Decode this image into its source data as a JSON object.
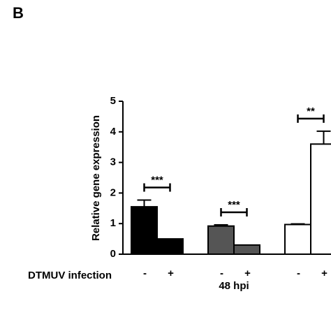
{
  "chart_data": {
    "type": "bar",
    "panel_label": "B",
    "ylabel": "Relative gene expression",
    "xlabel": "DTMUV infection",
    "group_label": "48 hpi",
    "ylim": [
      0,
      5
    ],
    "yticks": [
      0,
      1,
      2,
      3,
      4,
      5
    ],
    "groups": [
      {
        "categories": [
          "-",
          "+"
        ],
        "color": "#000000",
        "values": [
          1.55,
          0.5
        ],
        "errors": [
          0.22,
          null
        ],
        "significance": "***"
      },
      {
        "categories": [
          "-",
          "+"
        ],
        "color": "#555555",
        "values": [
          0.92,
          0.3
        ],
        "errors": [
          0.04,
          null
        ],
        "significance": "***"
      },
      {
        "categories": [
          "-",
          "+"
        ],
        "color": "#ffffff",
        "values": [
          0.97,
          3.6
        ],
        "errors": [
          0.02,
          0.42
        ],
        "significance": "**"
      }
    ]
  }
}
